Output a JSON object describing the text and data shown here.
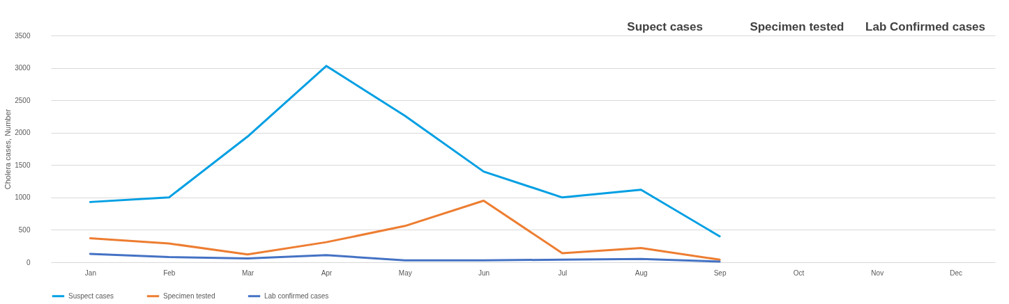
{
  "chart_data": {
    "type": "line",
    "ylabel": "Cholera cases, Number",
    "categories": [
      "Jan",
      "Feb",
      "Mar",
      "Apr",
      "May",
      "Jun",
      "Jul",
      "Aug",
      "Sep",
      "Oct",
      "Nov",
      "Dec"
    ],
    "series": [
      {
        "name": "Suspect cases",
        "color": "#009fe3",
        "values": [
          930,
          1000,
          1940,
          3030,
          2260,
          1400,
          1000,
          1120,
          400,
          null,
          null,
          null
        ]
      },
      {
        "name": "Specimen tested",
        "color": "#ed7d31",
        "values": [
          370,
          290,
          120,
          310,
          560,
          950,
          140,
          220,
          40,
          null,
          null,
          null
        ]
      },
      {
        "name": "Lab confirmed  cases",
        "color": "#4472c4",
        "values": [
          130,
          80,
          60,
          110,
          30,
          30,
          40,
          50,
          10,
          null,
          null,
          null
        ]
      }
    ],
    "ylim": [
      0,
      3500
    ],
    "yticks": [
      0,
      500,
      1000,
      1500,
      2000,
      2500,
      3000,
      3500
    ],
    "grid": "y",
    "legend": "bottom",
    "marker": "none",
    "line_style": "solid",
    "annotations": [
      "Supect cases",
      "Specimen tested",
      "Lab Confirmed cases"
    ]
  }
}
